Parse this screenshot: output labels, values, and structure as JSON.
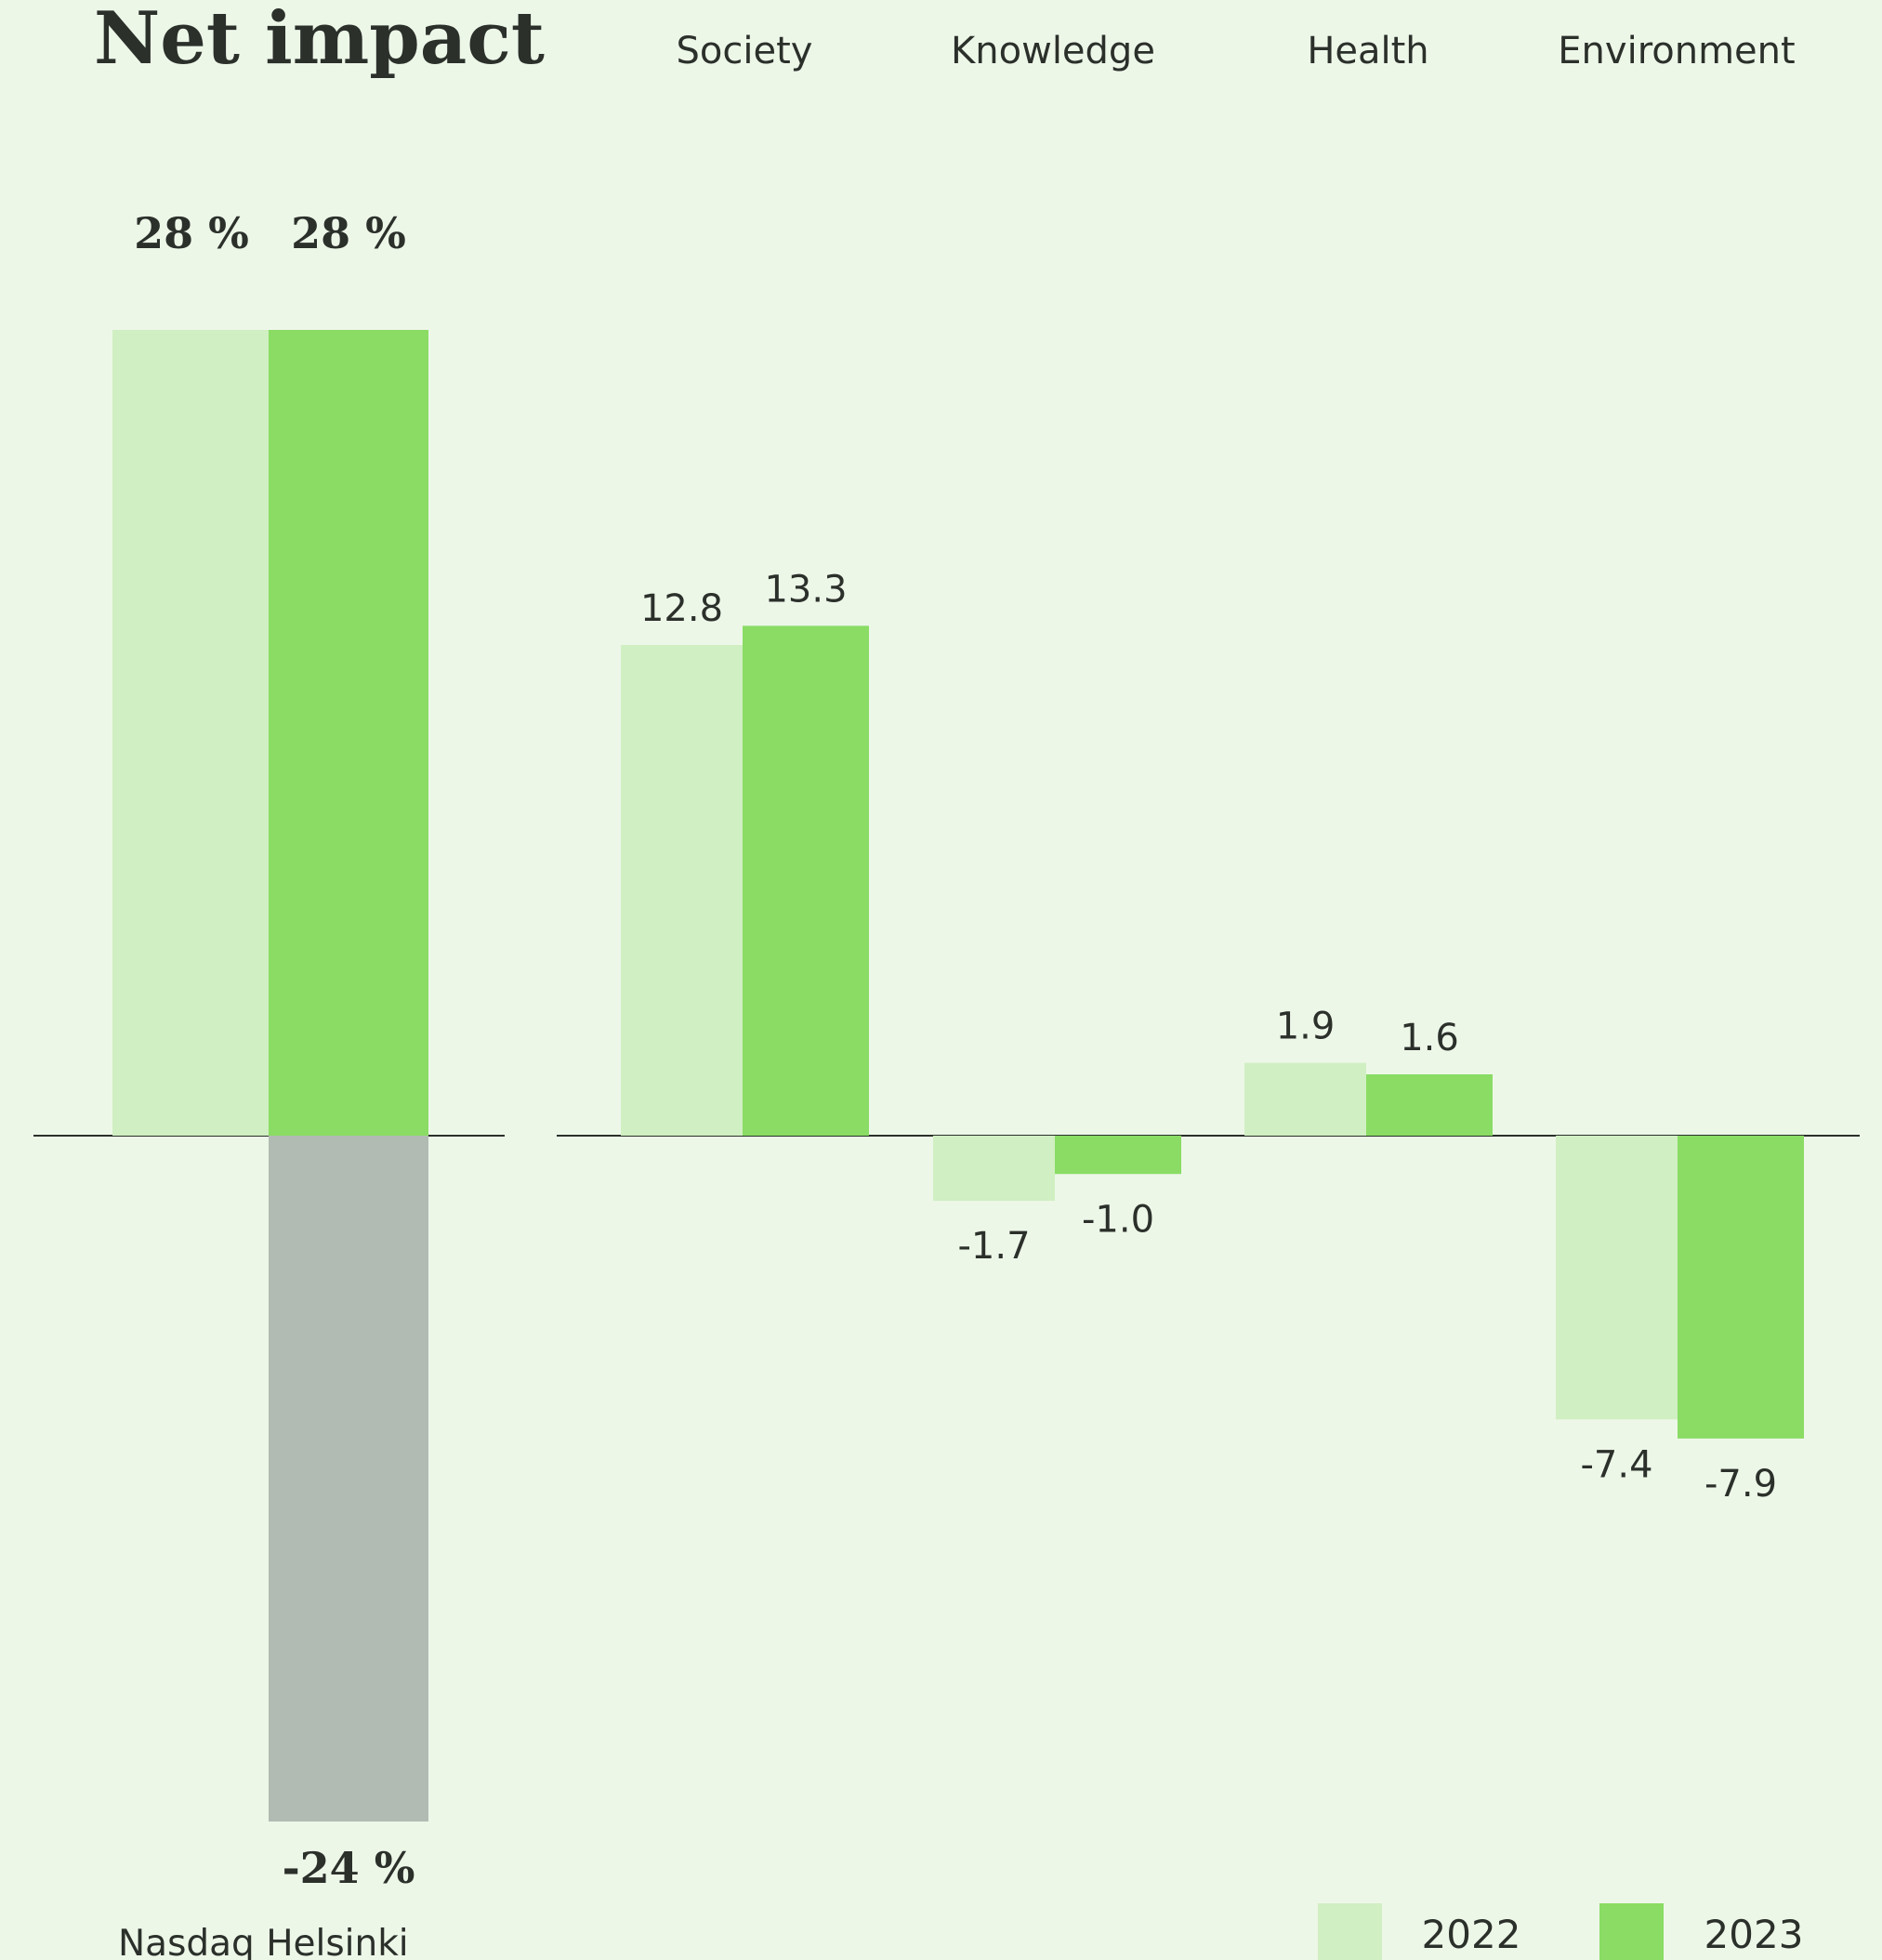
{
  "colors": {
    "background": "#edf7e8",
    "y2022": "#d0efc2",
    "y2023": "#8adc64",
    "negative_total": "#b2bbb3",
    "axis": "#2b302b",
    "text": "#2b302b"
  },
  "chart_data": [
    {
      "type": "bar",
      "title": "Net impact",
      "categories": [
        "2022",
        "2023"
      ],
      "series": [
        {
          "name": "2022",
          "positive": 28
        },
        {
          "name": "2023",
          "positive": 28,
          "negative": -24
        }
      ],
      "labels": {
        "pos_2022": "28 %",
        "pos_2023": "28 %",
        "neg_2023": "-24 %"
      },
      "footer": "Nasdaq Helsinki",
      "unit": "%",
      "ylim": [
        -24,
        28
      ]
    },
    {
      "type": "bar",
      "categories": [
        "Society",
        "Knowledge",
        "Health",
        "Environment"
      ],
      "series": [
        {
          "name": "2022",
          "values": [
            12.8,
            -1.7,
            1.9,
            -7.4
          ],
          "labels": [
            "12.8",
            "-1.7",
            "1.9",
            "-7.4"
          ]
        },
        {
          "name": "2023",
          "values": [
            13.3,
            -1.0,
            1.6,
            -7.9
          ],
          "labels": [
            "13.3",
            "-1.0",
            "1.6",
            "-7.9"
          ]
        }
      ],
      "legend": {
        "position": "bottom-right",
        "items": [
          "2022",
          "2023"
        ]
      },
      "grid": false
    }
  ]
}
